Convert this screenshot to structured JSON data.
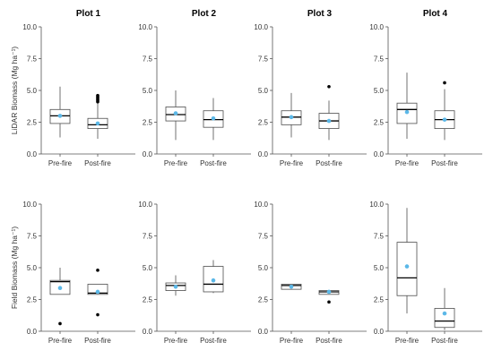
{
  "colors": {
    "box_line": "#4d4d4d",
    "median": "#000000",
    "mean": "#5bb8e8",
    "outlier": "#000000",
    "axis": "#555555"
  },
  "chart_data": [
    {
      "type": "box",
      "title": "Plot 1",
      "row": "lidar",
      "ylabel": "LiDAR Biomass (Mg ha⁻¹)",
      "ylim": [
        0,
        10
      ],
      "yticks": [
        "0.0",
        "2.5",
        "5.0",
        "7.5",
        "10.0"
      ],
      "categories": [
        "Pre-fire",
        "Post-fire"
      ],
      "boxes": [
        {
          "min": 1.3,
          "q1": 2.4,
          "median": 3.0,
          "q3": 3.5,
          "max": 5.3,
          "mean": 3.0,
          "outliers": []
        },
        {
          "min": 1.2,
          "q1": 2.0,
          "median": 2.3,
          "q3": 2.8,
          "max": 4.0,
          "mean": 2.4,
          "outliers": [
            4.1,
            4.2,
            4.3,
            4.4,
            4.5,
            4.6
          ]
        }
      ]
    },
    {
      "type": "box",
      "title": "Plot 2",
      "row": "lidar",
      "ylabel": "",
      "ylim": [
        0,
        10
      ],
      "yticks": [
        "0.0",
        "2.5",
        "5.0",
        "7.5",
        "10.0"
      ],
      "categories": [
        "Pre-fire",
        "Post-fire"
      ],
      "boxes": [
        {
          "min": 1.1,
          "q1": 2.6,
          "median": 3.1,
          "q3": 3.7,
          "max": 5.0,
          "mean": 3.2,
          "outliers": []
        },
        {
          "min": 1.1,
          "q1": 2.1,
          "median": 2.7,
          "q3": 3.4,
          "max": 4.4,
          "mean": 2.8,
          "outliers": []
        }
      ]
    },
    {
      "type": "box",
      "title": "Plot 3",
      "row": "lidar",
      "ylabel": "",
      "ylim": [
        0,
        10
      ],
      "yticks": [
        "0.0",
        "2.5",
        "5.0",
        "7.5",
        "10.0"
      ],
      "categories": [
        "Pre-fire",
        "Post-fire"
      ],
      "boxes": [
        {
          "min": 1.3,
          "q1": 2.3,
          "median": 2.9,
          "q3": 3.4,
          "max": 4.8,
          "mean": 2.9,
          "outliers": []
        },
        {
          "min": 1.1,
          "q1": 2.0,
          "median": 2.6,
          "q3": 3.2,
          "max": 4.2,
          "mean": 2.6,
          "outliers": [
            5.3
          ]
        }
      ]
    },
    {
      "type": "box",
      "title": "Plot 4",
      "row": "lidar",
      "ylabel": "",
      "ylim": [
        0,
        10
      ],
      "yticks": [
        "0.0",
        "2.5",
        "5.0",
        "7.5",
        "10.0"
      ],
      "categories": [
        "Pre-fire",
        "Post-fire"
      ],
      "boxes": [
        {
          "min": 1.2,
          "q1": 2.4,
          "median": 3.5,
          "q3": 4.0,
          "max": 6.4,
          "mean": 3.3,
          "outliers": []
        },
        {
          "min": 1.1,
          "q1": 2.0,
          "median": 2.7,
          "q3": 3.4,
          "max": 5.1,
          "mean": 2.7,
          "outliers": [
            5.6
          ]
        }
      ]
    },
    {
      "type": "box",
      "title": "",
      "row": "field",
      "ylabel": "Field Biomass (Mg ha⁻¹)",
      "ylim": [
        0,
        10
      ],
      "yticks": [
        "0.0",
        "2.5",
        "5.0",
        "7.5",
        "10.0"
      ],
      "categories": [
        "Pre-fire",
        "Post-fire"
      ],
      "boxes": [
        {
          "min": 2.9,
          "q1": 2.9,
          "median": 3.9,
          "q3": 4.0,
          "max": 5.0,
          "mean": 3.4,
          "outliers": [
            0.6
          ]
        },
        {
          "min": 2.9,
          "q1": 2.9,
          "median": 3.0,
          "q3": 3.7,
          "max": 3.7,
          "mean": 3.1,
          "outliers": [
            4.8,
            1.3
          ]
        }
      ]
    },
    {
      "type": "box",
      "title": "",
      "row": "field",
      "ylabel": "",
      "ylim": [
        0,
        10
      ],
      "yticks": [
        "0.0",
        "2.5",
        "5.0",
        "7.5",
        "10.0"
      ],
      "categories": [
        "Pre-fire",
        "Post-fire"
      ],
      "boxes": [
        {
          "min": 2.8,
          "q1": 3.2,
          "median": 3.6,
          "q3": 3.8,
          "max": 4.4,
          "mean": 3.5,
          "outliers": []
        },
        {
          "min": 3.0,
          "q1": 3.1,
          "median": 3.7,
          "q3": 5.1,
          "max": 5.6,
          "mean": 4.0,
          "outliers": []
        }
      ]
    },
    {
      "type": "box",
      "title": "",
      "row": "field",
      "ylabel": "",
      "ylim": [
        0,
        10
      ],
      "yticks": [
        "0.0",
        "2.5",
        "5.0",
        "7.5",
        "10.0"
      ],
      "categories": [
        "Pre-fire",
        "Post-fire"
      ],
      "boxes": [
        {
          "min": 3.3,
          "q1": 3.3,
          "median": 3.6,
          "q3": 3.7,
          "max": 3.7,
          "mean": 3.5,
          "outliers": []
        },
        {
          "min": 2.9,
          "q1": 2.9,
          "median": 3.1,
          "q3": 3.2,
          "max": 3.2,
          "mean": 3.1,
          "outliers": [
            2.3
          ]
        }
      ]
    },
    {
      "type": "box",
      "title": "",
      "row": "field",
      "ylabel": "",
      "ylim": [
        0,
        10
      ],
      "yticks": [
        "0.0",
        "2.5",
        "5.0",
        "7.5",
        "10.0"
      ],
      "categories": [
        "Pre-fire",
        "Post-fire"
      ],
      "boxes": [
        {
          "min": 1.4,
          "q1": 2.8,
          "median": 4.2,
          "q3": 7.0,
          "max": 9.7,
          "mean": 5.1,
          "outliers": []
        },
        {
          "min": 0.1,
          "q1": 0.3,
          "median": 0.8,
          "q3": 1.8,
          "max": 3.4,
          "mean": 1.4,
          "outliers": []
        }
      ]
    }
  ]
}
